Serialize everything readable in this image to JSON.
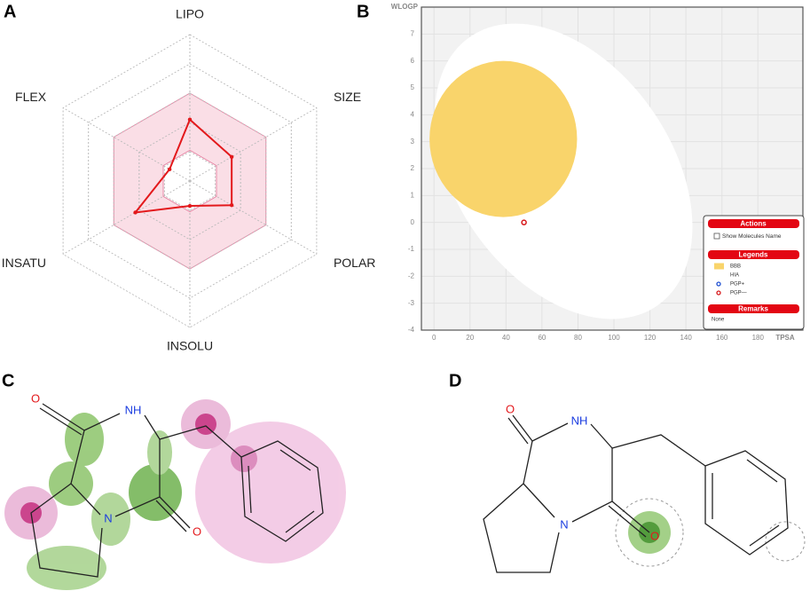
{
  "panel_labels": [
    "A",
    "B",
    "C",
    "D"
  ],
  "chart_data": [
    {
      "type": "radar",
      "categories": [
        "LIPO",
        "SIZE",
        "POLAR",
        "INSOLU",
        "INSATU",
        "FLEX"
      ],
      "values": [
        0.42,
        0.33,
        0.33,
        0.17,
        0.43,
        0.16
      ],
      "color": "#e3191c",
      "rlim": [
        0,
        1
      ],
      "rticks": [
        0.2,
        0.4,
        0.6,
        0.8,
        1
      ],
      "optimal_range": [
        0.21,
        0.6
      ],
      "band_color": "#f4b6c8"
    },
    {
      "type": "scatter",
      "xlabel": "TPSA",
      "ylabel": "WLOGP",
      "xlim": [
        -7,
        205
      ],
      "ylim": [
        -4,
        8
      ],
      "xticks": [
        0,
        20,
        40,
        60,
        80,
        100,
        120,
        140,
        160,
        180
      ],
      "yticks": [
        -4,
        -3,
        -2,
        -1,
        0,
        1,
        2,
        3,
        4,
        5,
        6,
        7
      ],
      "grid": true,
      "regions": [
        {
          "name": "HIA",
          "color": "#ffffff",
          "center": [
            72,
            1.9
          ],
          "rx": 91,
          "ry": 4.0,
          "rotation": 55
        },
        {
          "name": "BBB",
          "color": "#f9d46b",
          "center": [
            38.5,
            3.1
          ],
          "rx": 41,
          "ry": 2.9,
          "rotation": 0
        }
      ],
      "series": [
        {
          "name": "PGP—",
          "color": "#d7191c",
          "x": [
            50
          ],
          "y": [
            0
          ]
        }
      ],
      "legend_items": [
        {
          "name": "BBB",
          "color": "#f9d46b"
        },
        {
          "name": "HIA",
          "color": "#ffffff"
        },
        {
          "name": "PGP+",
          "color": "#1f4fd1"
        },
        {
          "name": "PGP—",
          "color": "#d7191c"
        }
      ],
      "panel": {
        "actions": "Actions",
        "checkbox": "Show Molecules Name",
        "legends": "Legends",
        "remarks": "Remarks",
        "remarks_text": "None"
      }
    }
  ],
  "molecule_c": {
    "atoms": [
      "O",
      "NH",
      "N",
      "O"
    ]
  },
  "molecule_d": {
    "atoms": [
      "O",
      "NH",
      "N",
      "O"
    ]
  }
}
